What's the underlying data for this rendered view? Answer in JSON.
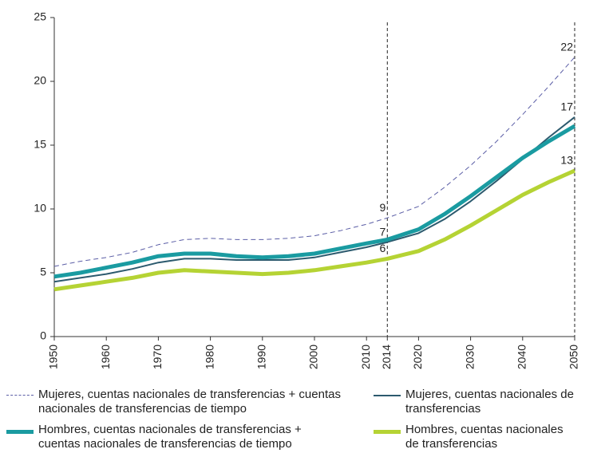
{
  "chart_data": {
    "type": "line",
    "x": [
      1950,
      1955,
      1960,
      1965,
      1970,
      1975,
      1980,
      1985,
      1990,
      1995,
      2000,
      2005,
      2010,
      2014,
      2020,
      2025,
      2030,
      2035,
      2040,
      2045,
      2050
    ],
    "series": [
      {
        "name": "Mujeres, cuentas nacionales de transferencias + cuentas nacionales de transferencias de tiempo",
        "color": "#5b5ea6",
        "line_style": "dashed",
        "line_width": 1,
        "values": [
          5.5,
          5.9,
          6.2,
          6.6,
          7.2,
          7.6,
          7.7,
          7.6,
          7.6,
          7.7,
          7.9,
          8.3,
          8.8,
          9.3,
          10.2,
          11.7,
          13.4,
          15.3,
          17.4,
          19.6,
          21.9
        ],
        "value_labels": [
          null,
          null,
          null,
          null,
          null,
          null,
          null,
          null,
          null,
          null,
          null,
          null,
          null,
          "9",
          null,
          null,
          null,
          null,
          null,
          null,
          "22"
        ]
      },
      {
        "name": "Mujeres, cuentas nacionales de transferencias",
        "color": "#2c5a6e",
        "line_style": "solid",
        "line_width": 2,
        "values": [
          4.3,
          4.6,
          4.9,
          5.3,
          5.8,
          6.1,
          6.1,
          6.0,
          6.0,
          6.0,
          6.2,
          6.6,
          7.0,
          7.4,
          8.1,
          9.2,
          10.6,
          12.2,
          13.9,
          15.6,
          17.2
        ],
        "value_labels": [
          null,
          null,
          null,
          null,
          null,
          null,
          null,
          null,
          null,
          null,
          null,
          null,
          null,
          "7",
          null,
          null,
          null,
          null,
          null,
          null,
          "17"
        ]
      },
      {
        "name": "Hombres, cuentas nacionales de transferencias + cuentas nacionales de transferencias de tiempo",
        "color": "#1a9ba1",
        "line_style": "solid",
        "line_width": 5,
        "values": [
          4.7,
          5.0,
          5.4,
          5.8,
          6.3,
          6.5,
          6.5,
          6.3,
          6.2,
          6.3,
          6.5,
          6.9,
          7.3,
          7.6,
          8.4,
          9.6,
          11.0,
          12.5,
          14.0,
          15.3,
          16.5
        ]
      },
      {
        "name": "Hombres, cuentas nacionales de transferencias",
        "color": "#b5d334",
        "line_style": "solid",
        "line_width": 5,
        "values": [
          3.7,
          4.0,
          4.3,
          4.6,
          5.0,
          5.2,
          5.1,
          5.0,
          4.9,
          5.0,
          5.2,
          5.5,
          5.8,
          6.1,
          6.7,
          7.6,
          8.7,
          9.9,
          11.1,
          12.1,
          13.0
        ],
        "value_labels": [
          null,
          null,
          null,
          null,
          null,
          null,
          null,
          null,
          null,
          null,
          null,
          null,
          null,
          "6",
          null,
          null,
          null,
          null,
          null,
          null,
          "13"
        ]
      }
    ],
    "xlim": [
      1950,
      2050
    ],
    "xticks": [
      1950,
      1960,
      1970,
      1980,
      1990,
      2000,
      2010,
      2014,
      2020,
      2030,
      2040,
      2050
    ],
    "ylim": [
      0,
      25
    ],
    "yticks": [
      0,
      5,
      10,
      15,
      20,
      25
    ],
    "vlines": [
      2014,
      2050
    ],
    "grid": false
  }
}
